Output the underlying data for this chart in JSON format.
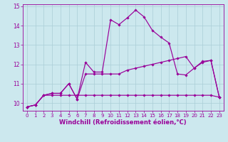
{
  "background_color": "#cce8ee",
  "grid_color": "#aacdd6",
  "line_color": "#990099",
  "xlabel": "Windchill (Refroidissement éolien,°C)",
  "x_hours": [
    0,
    1,
    2,
    3,
    4,
    5,
    6,
    7,
    8,
    9,
    10,
    11,
    12,
    13,
    14,
    15,
    16,
    17,
    18,
    19,
    20,
    21,
    22,
    23
  ],
  "windchill_line": [
    9.8,
    9.9,
    10.4,
    10.5,
    10.5,
    11.0,
    10.2,
    12.1,
    11.6,
    11.6,
    14.3,
    14.05,
    14.4,
    14.8,
    14.45,
    13.75,
    13.4,
    13.1,
    11.5,
    11.45,
    11.8,
    12.15,
    12.2,
    10.3
  ],
  "temp_line": [
    9.8,
    9.9,
    10.4,
    10.5,
    10.5,
    11.0,
    10.2,
    11.5,
    11.5,
    11.5,
    11.5,
    11.5,
    11.7,
    11.8,
    11.9,
    12.0,
    12.1,
    12.2,
    12.3,
    12.4,
    11.8,
    12.1,
    12.2,
    10.3
  ],
  "flat_line": [
    9.8,
    9.9,
    10.4,
    10.4,
    10.4,
    10.4,
    10.4,
    10.4,
    10.4,
    10.4,
    10.4,
    10.4,
    10.4,
    10.4,
    10.4,
    10.4,
    10.4,
    10.4,
    10.4,
    10.4,
    10.4,
    10.4,
    10.4,
    10.3
  ],
  "ylim": [
    9.6,
    15.1
  ],
  "xlim": [
    -0.5,
    23.5
  ],
  "yticks": [
    10,
    11,
    12,
    13,
    14,
    15
  ],
  "xticks": [
    0,
    1,
    2,
    3,
    4,
    5,
    6,
    7,
    8,
    9,
    10,
    11,
    12,
    13,
    14,
    15,
    16,
    17,
    18,
    19,
    20,
    21,
    22,
    23
  ],
  "tick_fontsize": 5.0,
  "xlabel_fontsize": 6.0,
  "marker": "D",
  "markersize": 1.8,
  "linewidth": 0.85
}
